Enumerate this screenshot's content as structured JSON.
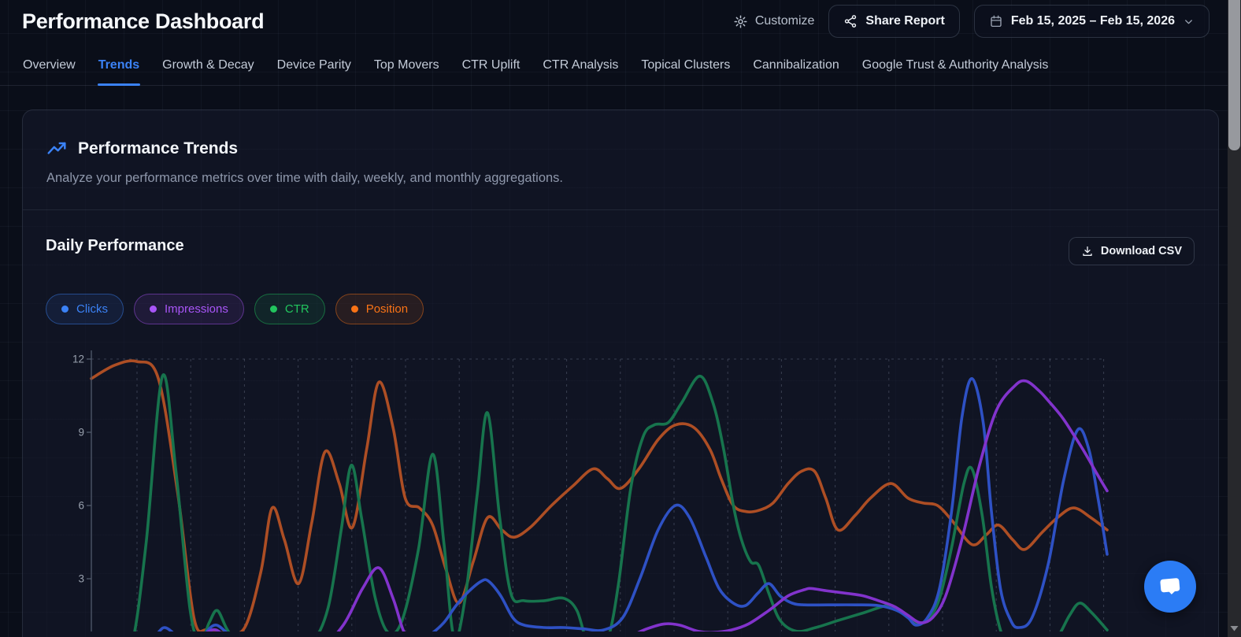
{
  "page": {
    "title": "Performance Dashboard"
  },
  "header": {
    "customize": {
      "label": "Customize"
    },
    "share": {
      "label": "Share Report"
    },
    "date_range": {
      "label": "Feb 15, 2025 – Feb 15, 2026"
    }
  },
  "tabs": [
    {
      "label": "Overview",
      "active": false
    },
    {
      "label": "Trends",
      "active": true
    },
    {
      "label": "Growth & Decay",
      "active": false
    },
    {
      "label": "Device Parity",
      "active": false
    },
    {
      "label": "Top Movers",
      "active": false
    },
    {
      "label": "CTR Uplift",
      "active": false
    },
    {
      "label": "CTR Analysis",
      "active": false
    },
    {
      "label": "Topical Clusters",
      "active": false
    },
    {
      "label": "Cannibalization",
      "active": false
    },
    {
      "label": "Google Trust & Authority Analysis",
      "active": false
    }
  ],
  "trends_section": {
    "title": "Performance Trends",
    "description": "Analyze your performance metrics over time with daily, weekly, and monthly aggregations."
  },
  "daily_section": {
    "title": "Daily Performance",
    "download_button": "Download CSV"
  },
  "legend": [
    {
      "label": "Clicks",
      "color": "#3b82f6"
    },
    {
      "label": "Impressions",
      "color": "#a855f7"
    },
    {
      "label": "CTR",
      "color": "#22c55e"
    },
    {
      "label": "Position",
      "color": "#f97316"
    }
  ],
  "colors": {
    "accent": "#3b82f6",
    "background": "#0a0e19",
    "card": "#151a2c",
    "fab": "#2b7cf5"
  },
  "chart_data": {
    "type": "line",
    "title": "Daily Performance",
    "x_unit": "percent of visible date range (x tick labels cropped below viewport)",
    "y_axis": {
      "ticks": [
        3,
        6,
        9,
        12
      ],
      "range": [
        0,
        12.4
      ]
    },
    "grid": {
      "vertical_dashed": true,
      "top_dashed_at": 12,
      "legend_position": "top-left-chips"
    },
    "draw_order": [
      "Position",
      "CTR",
      "Clicks",
      "Impressions"
    ],
    "series": [
      {
        "name": "Clicks",
        "color": "#2e51c4",
        "points": [
          [
            0,
            0.1
          ],
          [
            3.5,
            0.1
          ],
          [
            5.4,
            0.2
          ],
          [
            6.6,
            0.8
          ],
          [
            7.2,
            1.0
          ],
          [
            8,
            0.8
          ],
          [
            9.1,
            0.3
          ],
          [
            10.5,
            0.3
          ],
          [
            11.5,
            0.9
          ],
          [
            12.3,
            1.1
          ],
          [
            13.3,
            0.8
          ],
          [
            14.5,
            0.3
          ],
          [
            16.7,
            0.1
          ],
          [
            19.4,
            0.1
          ],
          [
            22.1,
            0.2
          ],
          [
            24,
            0.4
          ],
          [
            26,
            0.5
          ],
          [
            27.9,
            0.4
          ],
          [
            29.8,
            0.3
          ],
          [
            31.8,
            0.4
          ],
          [
            33.3,
            0.7
          ],
          [
            34.7,
            1.2
          ],
          [
            35.9,
            1.9
          ],
          [
            37.2,
            2.5
          ],
          [
            38.4,
            2.9
          ],
          [
            39.1,
            2.9
          ],
          [
            40.3,
            2.3
          ],
          [
            41.5,
            1.4
          ],
          [
            42.6,
            1.1
          ],
          [
            44.6,
            1.0
          ],
          [
            46.5,
            1.0
          ],
          [
            48.4,
            0.95
          ],
          [
            50.4,
            0.9
          ],
          [
            52.3,
            1.4
          ],
          [
            54,
            3.0
          ],
          [
            55.8,
            5.0
          ],
          [
            57.5,
            6.0
          ],
          [
            58.9,
            5.5
          ],
          [
            60.5,
            3.9
          ],
          [
            61.8,
            2.6
          ],
          [
            63.2,
            2.0
          ],
          [
            64.4,
            1.9
          ],
          [
            65.6,
            2.4
          ],
          [
            66.7,
            2.8
          ],
          [
            67.8,
            2.3
          ],
          [
            69,
            2.0
          ],
          [
            70.2,
            1.93
          ],
          [
            72.5,
            1.93
          ],
          [
            75.2,
            1.93
          ],
          [
            77.5,
            1.9
          ],
          [
            79.3,
            1.7
          ],
          [
            80.4,
            1.4
          ],
          [
            81.2,
            1.1
          ],
          [
            82.3,
            1.4
          ],
          [
            83.5,
            2.6
          ],
          [
            84.7,
            5.8
          ],
          [
            85.7,
            9.6
          ],
          [
            86.7,
            11.2
          ],
          [
            87.8,
            9.4
          ],
          [
            88.6,
            5.8
          ],
          [
            89.5,
            2.6
          ],
          [
            90.5,
            1.3
          ],
          [
            91.3,
            1.0
          ],
          [
            92.6,
            1.4
          ],
          [
            94.2,
            3.6
          ],
          [
            95.7,
            7.0
          ],
          [
            97.1,
            9.1
          ],
          [
            98.2,
            8.3
          ],
          [
            99.1,
            6.3
          ],
          [
            100,
            4.0
          ]
        ]
      },
      {
        "name": "Impressions",
        "color": "#8233cc",
        "points": [
          [
            0,
            0.05
          ],
          [
            5.8,
            0.05
          ],
          [
            8.5,
            0.15
          ],
          [
            10.3,
            0.5
          ],
          [
            11.4,
            0.8
          ],
          [
            12.3,
            0.9
          ],
          [
            13.6,
            0.5
          ],
          [
            15.5,
            0.1
          ],
          [
            19,
            0.05
          ],
          [
            22.5,
            0.2
          ],
          [
            24.8,
            1.1
          ],
          [
            26.7,
            2.6
          ],
          [
            28.3,
            3.45
          ],
          [
            29.7,
            2.2
          ],
          [
            30.8,
            0.8
          ],
          [
            32,
            0.25
          ],
          [
            34.1,
            0.1
          ],
          [
            38.4,
            0.1
          ],
          [
            42.6,
            0.1
          ],
          [
            46.9,
            0.2
          ],
          [
            50,
            0.3
          ],
          [
            52.7,
            0.6
          ],
          [
            54.7,
            0.95
          ],
          [
            56.4,
            1.15
          ],
          [
            57.9,
            1.1
          ],
          [
            59.7,
            0.85
          ],
          [
            61.2,
            0.8
          ],
          [
            63,
            0.9
          ],
          [
            64.7,
            1.15
          ],
          [
            66.7,
            1.7
          ],
          [
            68.6,
            2.3
          ],
          [
            70.2,
            2.55
          ],
          [
            70.9,
            2.6
          ],
          [
            72.5,
            2.5
          ],
          [
            74.4,
            2.4
          ],
          [
            76,
            2.3
          ],
          [
            77.5,
            2.1
          ],
          [
            79.1,
            1.85
          ],
          [
            80.4,
            1.5
          ],
          [
            81.6,
            1.2
          ],
          [
            82.8,
            1.4
          ],
          [
            84.1,
            2.3
          ],
          [
            85.7,
            4.6
          ],
          [
            87.4,
            7.6
          ],
          [
            89.1,
            9.9
          ],
          [
            90.9,
            10.9
          ],
          [
            92,
            11.1
          ],
          [
            93.3,
            10.7
          ],
          [
            94.3,
            10.25
          ],
          [
            95.6,
            9.6
          ],
          [
            96.7,
            8.9
          ],
          [
            97.9,
            8.1
          ],
          [
            99,
            7.3
          ],
          [
            100,
            6.6
          ]
        ]
      },
      {
        "name": "CTR",
        "color": "#17744d",
        "points": [
          [
            0,
            0.02
          ],
          [
            2.9,
            0.05
          ],
          [
            4.1,
            0.5
          ],
          [
            5.4,
            4.5
          ],
          [
            7,
            11.3
          ],
          [
            8.3,
            7.5
          ],
          [
            9.7,
            1.8
          ],
          [
            10.7,
            0.4
          ],
          [
            11.6,
            1.2
          ],
          [
            12.4,
            1.7
          ],
          [
            13.4,
            0.9
          ],
          [
            14.7,
            0.2
          ],
          [
            17.1,
            0.1
          ],
          [
            19.4,
            0.1
          ],
          [
            21.7,
            0.4
          ],
          [
            23.3,
            1.8
          ],
          [
            24.6,
            5.0
          ],
          [
            25.6,
            7.65
          ],
          [
            26.6,
            5.5
          ],
          [
            27.9,
            2.3
          ],
          [
            29.2,
            0.8
          ],
          [
            30.6,
            1.3
          ],
          [
            32.2,
            4.2
          ],
          [
            33.6,
            8.1
          ],
          [
            34.7,
            4.5
          ],
          [
            35.7,
            0.6
          ],
          [
            36.8,
            2.2
          ],
          [
            38,
            6.5
          ],
          [
            39,
            9.8
          ],
          [
            40.2,
            5.5
          ],
          [
            41.3,
            2.4
          ],
          [
            42.6,
            2.1
          ],
          [
            44.6,
            2.1
          ],
          [
            46.5,
            2.2
          ],
          [
            47.8,
            1.7
          ],
          [
            48.8,
            0.4
          ],
          [
            49.8,
            0.15
          ],
          [
            50.9,
            0.6
          ],
          [
            51.9,
            2.8
          ],
          [
            53.1,
            6.7
          ],
          [
            54.3,
            8.8
          ],
          [
            55.4,
            9.3
          ],
          [
            56.8,
            9.4
          ],
          [
            58.1,
            10.2
          ],
          [
            59.9,
            11.3
          ],
          [
            61.2,
            10.2
          ],
          [
            62.2,
            8.4
          ],
          [
            63.2,
            6.0
          ],
          [
            64,
            4.6
          ],
          [
            64.9,
            3.7
          ],
          [
            65.7,
            3.55
          ],
          [
            66.7,
            2.4
          ],
          [
            67.8,
            1.3
          ],
          [
            69.4,
            0.85
          ],
          [
            71.3,
            1.0
          ],
          [
            73.6,
            1.3
          ],
          [
            76,
            1.6
          ],
          [
            77.8,
            1.85
          ],
          [
            78.8,
            1.9
          ],
          [
            80.1,
            1.55
          ],
          [
            81.2,
            1.15
          ],
          [
            82.4,
            1.35
          ],
          [
            83.5,
            2.2
          ],
          [
            84.7,
            4.3
          ],
          [
            85.9,
            6.9
          ],
          [
            86.7,
            7.5
          ],
          [
            87.7,
            5.6
          ],
          [
            88.6,
            2.7
          ],
          [
            89.5,
            0.9
          ],
          [
            90.5,
            0.15
          ],
          [
            92,
            0.05
          ],
          [
            93.6,
            0.1
          ],
          [
            95.1,
            0.6
          ],
          [
            96.3,
            1.5
          ],
          [
            97.3,
            2.0
          ],
          [
            98.5,
            1.6
          ],
          [
            100,
            0.9
          ]
        ]
      },
      {
        "name": "Position",
        "color": "#ad4e24",
        "points": [
          [
            0,
            11.2
          ],
          [
            2.3,
            11.75
          ],
          [
            4.5,
            11.9
          ],
          [
            6.6,
            11.2
          ],
          [
            8.5,
            6.5
          ],
          [
            10.1,
            1.4
          ],
          [
            11.4,
            0.9
          ],
          [
            13.2,
            0.8
          ],
          [
            15.1,
            1.0
          ],
          [
            16.7,
            3.3
          ],
          [
            17.8,
            5.9
          ],
          [
            19,
            4.6
          ],
          [
            20.4,
            2.8
          ],
          [
            21.7,
            5.3
          ],
          [
            23,
            8.2
          ],
          [
            24.4,
            6.9
          ],
          [
            25.7,
            5.1
          ],
          [
            27.1,
            8.3
          ],
          [
            28.3,
            11.05
          ],
          [
            29.7,
            9.2
          ],
          [
            30.9,
            6.3
          ],
          [
            32.3,
            5.9
          ],
          [
            33.6,
            5.2
          ],
          [
            34.9,
            3.4
          ],
          [
            36.2,
            2.0
          ],
          [
            37.6,
            3.7
          ],
          [
            39,
            5.5
          ],
          [
            40.4,
            5.0
          ],
          [
            41.6,
            4.7
          ],
          [
            43.2,
            5.1
          ],
          [
            45.3,
            6.0
          ],
          [
            47.4,
            6.8
          ],
          [
            49.4,
            7.5
          ],
          [
            50.8,
            7.1
          ],
          [
            52.1,
            6.7
          ],
          [
            53.9,
            7.5
          ],
          [
            55.8,
            8.7
          ],
          [
            57.5,
            9.3
          ],
          [
            59.3,
            9.2
          ],
          [
            60.9,
            8.3
          ],
          [
            62,
            7.1
          ],
          [
            63.2,
            6.0
          ],
          [
            64.5,
            5.75
          ],
          [
            65.7,
            5.8
          ],
          [
            67.1,
            6.1
          ],
          [
            68.6,
            6.9
          ],
          [
            69.9,
            7.4
          ],
          [
            71.2,
            7.4
          ],
          [
            72.3,
            6.3
          ],
          [
            73.5,
            5.0
          ],
          [
            75.2,
            5.6
          ],
          [
            76.7,
            6.3
          ],
          [
            78.7,
            6.9
          ],
          [
            80.4,
            6.3
          ],
          [
            81.9,
            6.1
          ],
          [
            83.3,
            6.0
          ],
          [
            84.7,
            5.4
          ],
          [
            86.7,
            4.4
          ],
          [
            88.1,
            4.8
          ],
          [
            89.3,
            5.2
          ],
          [
            90.7,
            4.6
          ],
          [
            91.9,
            4.2
          ],
          [
            93.6,
            4.9
          ],
          [
            95.1,
            5.5
          ],
          [
            96.7,
            5.9
          ],
          [
            98.4,
            5.5
          ],
          [
            100,
            5.0
          ]
        ]
      }
    ]
  }
}
